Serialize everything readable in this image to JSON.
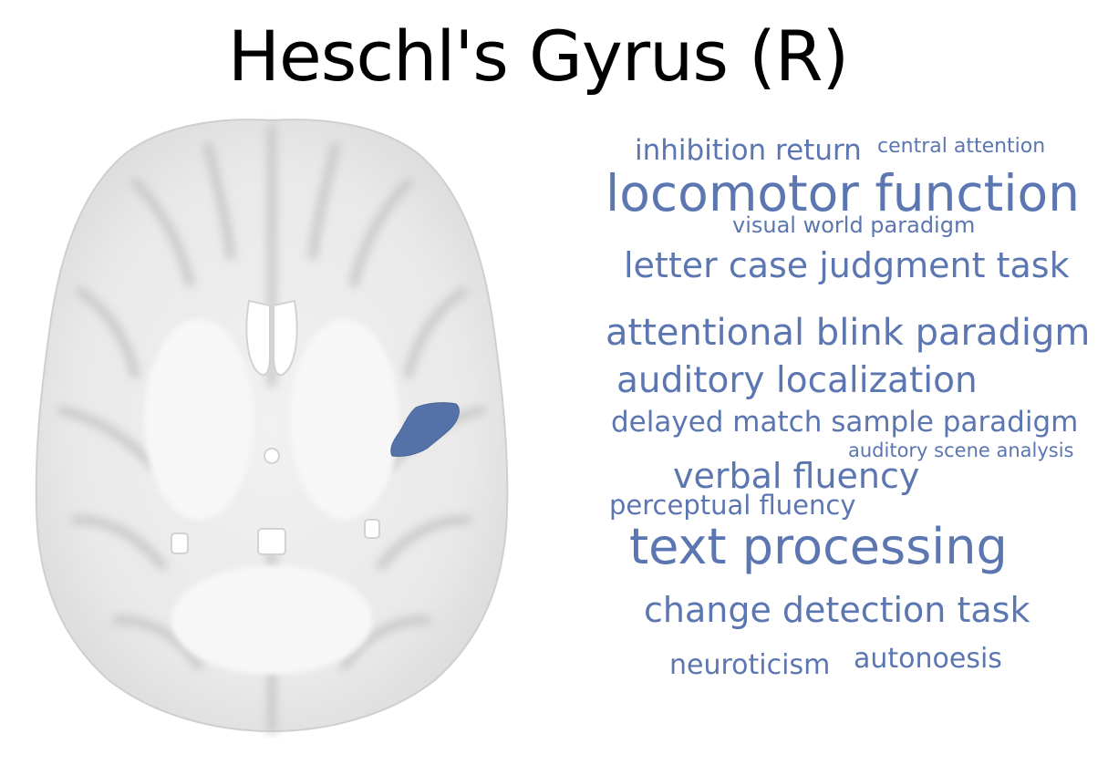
{
  "title": "Heschl's Gyrus (R)",
  "region_color": "#5572a8",
  "term_color": "#5b76b0",
  "brain": {
    "view": "axial slice",
    "highlighted_region": "Heschl's Gyrus (R)"
  },
  "terms": [
    "inhibition return",
    "central attention",
    "locomotor function",
    "visual world paradigm",
    "letter case judgment task",
    "attentional blink paradigm",
    "auditory localization",
    "delayed match sample paradigm",
    "auditory scene analysis",
    "verbal fluency",
    "perceptual fluency",
    "text processing",
    "change detection task",
    "neuroticism",
    "autonoesis"
  ]
}
